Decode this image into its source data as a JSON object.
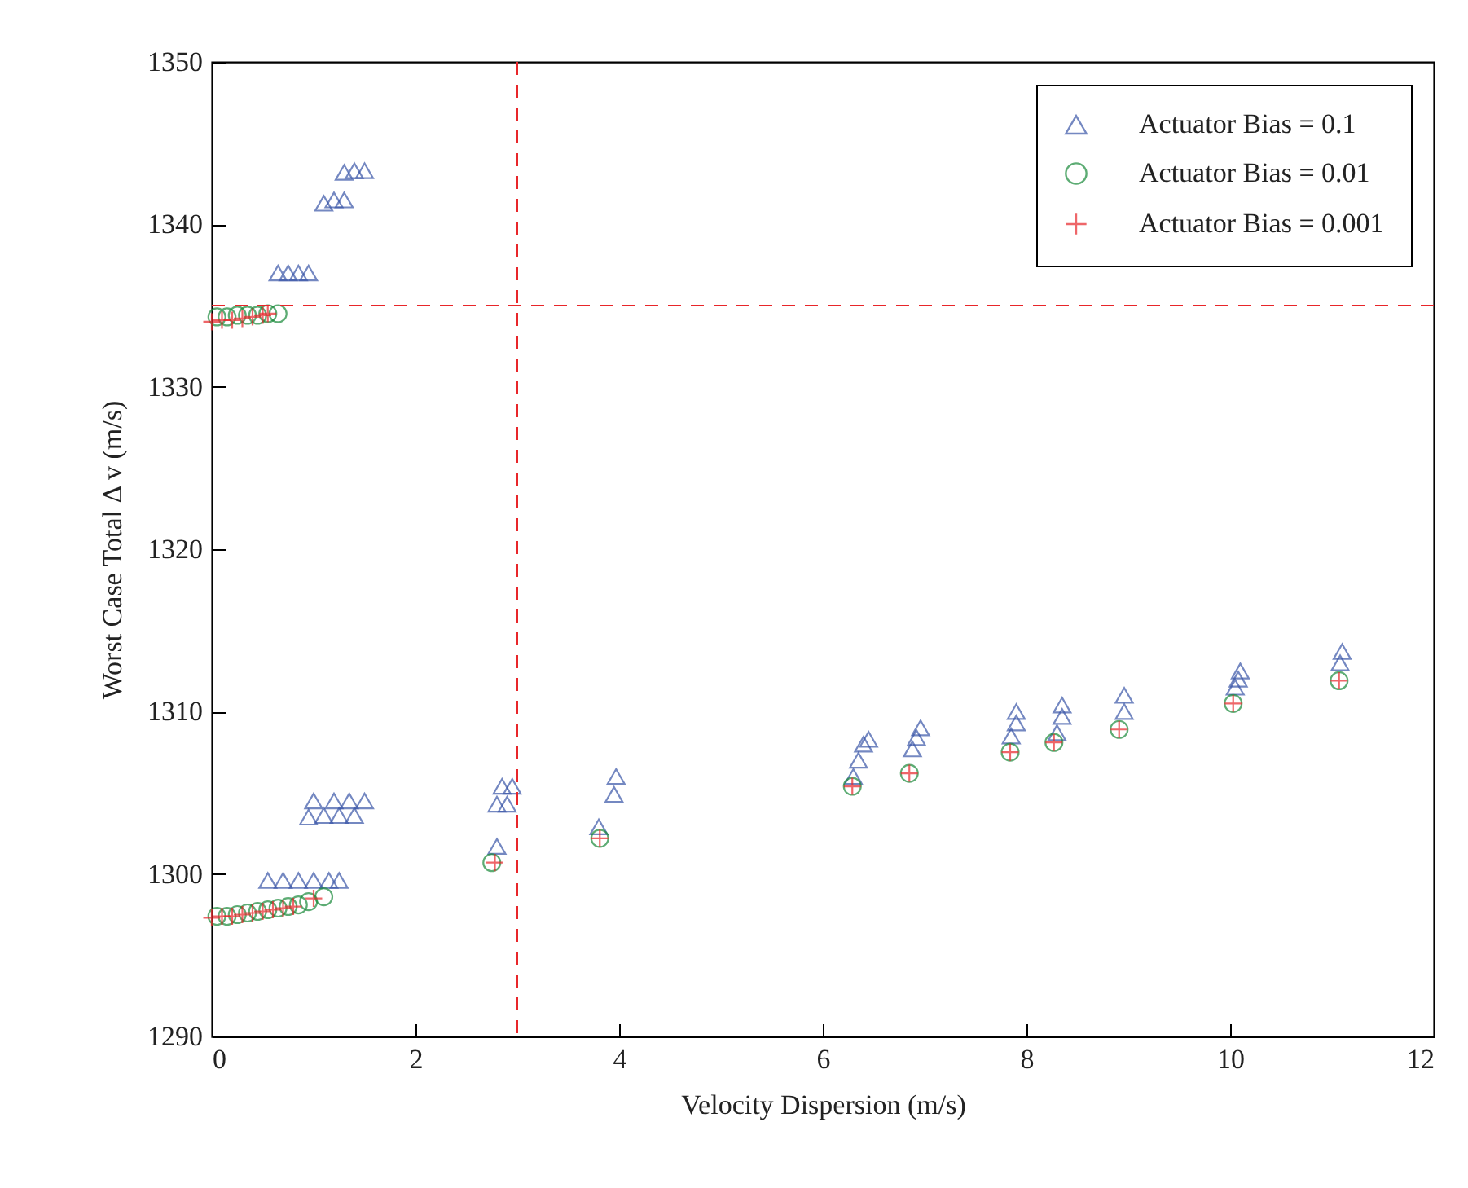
{
  "chart_data": {
    "type": "scatter",
    "xlabel": "Velocity Dispersion (m/s)",
    "ylabel": "Worst Case Total Δ v (m/s)",
    "xlim": [
      0,
      12
    ],
    "xticks": [
      0,
      2,
      4,
      6,
      8,
      10,
      12
    ],
    "ylim": [
      1290,
      1350
    ],
    "yticks": [
      1290,
      1300,
      1310,
      1320,
      1330,
      1340,
      1350
    ],
    "grid": false,
    "legend": "top right",
    "ref_lines": [
      {
        "axis": "x",
        "value": 3,
        "color": "#e8262a",
        "line_style": "dashed"
      },
      {
        "axis": "y",
        "value": 1335,
        "color": "#e8262a",
        "line_style": "dashed"
      }
    ],
    "series": [
      {
        "name": "Actuator Bias = 0.1",
        "color": "#3a56a8",
        "marker": "triangle",
        "x": [
          0.65,
          0.75,
          0.85,
          0.95,
          1.1,
          1.2,
          1.3,
          1.3,
          1.4,
          1.5,
          0.55,
          0.7,
          0.85,
          1.0,
          1.15,
          1.25,
          0.95,
          1.1,
          1.25,
          1.4,
          1.0,
          1.2,
          1.35,
          1.5,
          2.8,
          2.8,
          2.9,
          2.85,
          2.95,
          3.8,
          3.95,
          3.97,
          6.3,
          6.35,
          6.4,
          6.45,
          6.88,
          6.92,
          6.96,
          7.85,
          7.9,
          7.9,
          8.3,
          8.35,
          8.35,
          8.96,
          8.96,
          10.05,
          10.08,
          10.1,
          11.08,
          11.1
        ],
        "values": [
          1337,
          1337,
          1337,
          1337,
          1341.3,
          1341.5,
          1341.5,
          1343.2,
          1343.3,
          1343.3,
          1299.6,
          1299.6,
          1299.6,
          1299.6,
          1299.6,
          1299.6,
          1303.5,
          1303.6,
          1303.6,
          1303.6,
          1304.5,
          1304.5,
          1304.5,
          1304.5,
          1301.7,
          1304.3,
          1304.3,
          1305.4,
          1305.4,
          1302.9,
          1304.9,
          1306,
          1306,
          1307,
          1308,
          1308.3,
          1307.7,
          1308.4,
          1309,
          1308.5,
          1309.3,
          1310,
          1308.7,
          1309.7,
          1310.4,
          1310,
          1311,
          1311.5,
          1312,
          1312.5,
          1313,
          1313.7
        ]
      },
      {
        "name": "Actuator Bias = 0.01",
        "color": "#1a8a3a",
        "marker": "circle",
        "x": [
          0.05,
          0.15,
          0.25,
          0.35,
          0.45,
          0.55,
          0.65,
          0.05,
          0.15,
          0.25,
          0.35,
          0.45,
          0.55,
          0.65,
          0.75,
          0.85,
          0.95,
          1.1,
          2.75,
          3.81,
          6.29,
          6.85,
          7.84,
          8.27,
          8.91,
          10.03,
          11.07
        ],
        "values": [
          1334.3,
          1334.3,
          1334.4,
          1334.4,
          1334.4,
          1334.5,
          1334.5,
          1297.4,
          1297.4,
          1297.5,
          1297.6,
          1297.7,
          1297.8,
          1297.9,
          1298,
          1298.1,
          1298.3,
          1298.6,
          1300.7,
          1302.2,
          1305.4,
          1306.2,
          1307.5,
          1308.1,
          1308.9,
          1310.5,
          1311.9
        ]
      },
      {
        "name": "Actuator Bias = 0.001",
        "color": "#e8262a",
        "marker": "cross",
        "x": [
          0.0,
          0.1,
          0.2,
          0.3,
          0.4,
          0.5,
          0.55,
          0.0,
          0.1,
          0.2,
          0.3,
          0.4,
          0.5,
          0.6,
          0.7,
          0.8,
          1.0,
          2.78,
          3.81,
          6.29,
          6.85,
          7.84,
          8.27,
          8.91,
          10.03,
          11.07
        ],
        "values": [
          1334,
          1334.1,
          1334.1,
          1334.2,
          1334.3,
          1334.4,
          1334.5,
          1297.3,
          1297.4,
          1297.4,
          1297.5,
          1297.6,
          1297.7,
          1297.8,
          1297.9,
          1298,
          1298.5,
          1300.7,
          1302.2,
          1305.4,
          1306.2,
          1307.5,
          1308.1,
          1308.9,
          1310.5,
          1311.9
        ]
      }
    ]
  }
}
